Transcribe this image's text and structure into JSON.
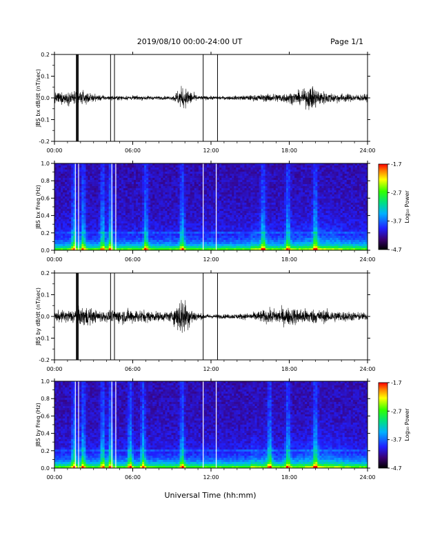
{
  "header": {
    "title": "2019/08/10  00:00-24:00 UT",
    "page": "Page 1/1"
  },
  "xlabel": "Universal Time (hh:mm)",
  "xticks": [
    "00:00",
    "06:00",
    "12:00",
    "18:00",
    "24:00"
  ],
  "colorbar": {
    "label": "Log₁₀ Power",
    "ticks": [
      "-1.7",
      "-2.7",
      "-3.7",
      "-4.7"
    ],
    "range": [
      -4.7,
      -1.7
    ]
  },
  "panels": [
    {
      "ylabel": "JBS bx dB/dt (nT/sec)",
      "yticks": [
        "0.2",
        "0.1",
        "0.0",
        "-0.1",
        "-0.2"
      ]
    },
    {
      "ylabel": "JBS bx Freq (Hz)",
      "yticks": [
        "1.0",
        "0.8",
        "0.6",
        "0.4",
        "0.2",
        "0.0"
      ]
    },
    {
      "ylabel": "JBS by dB/dt (nT/sec)",
      "yticks": [
        "0.2",
        "0.1",
        "0.0",
        "-0.1",
        "-0.2"
      ]
    },
    {
      "ylabel": "JBS by Freq (Hz)",
      "yticks": [
        "1.0",
        "0.8",
        "0.6",
        "0.4",
        "0.2",
        "0.0"
      ]
    }
  ],
  "chart_data": [
    {
      "type": "line",
      "ylabel": "JBS bx dB/dt (nT/sec)",
      "xlabel": "Universal Time (hh:mm)",
      "xlim": [
        0,
        24
      ],
      "ylim": [
        -0.2,
        0.2
      ],
      "x_units": "hours UT",
      "noise_envelope": {
        "x": [
          0,
          1,
          2,
          3,
          4,
          5,
          6,
          7,
          8,
          9,
          9.7,
          10.2,
          11,
          12,
          13,
          14,
          15,
          16,
          17,
          18,
          19,
          19.7,
          20.5,
          21,
          22,
          23,
          24
        ],
        "amplitude": [
          0.03,
          0.035,
          0.04,
          0.02,
          0.012,
          0.012,
          0.012,
          0.012,
          0.01,
          0.01,
          0.06,
          0.05,
          0.012,
          0.01,
          0.01,
          0.012,
          0.015,
          0.02,
          0.025,
          0.03,
          0.04,
          0.07,
          0.04,
          0.03,
          0.025,
          0.02,
          0.02
        ]
      },
      "spikes_hours": [
        1.7,
        1.8,
        4.3,
        4.6,
        11.4,
        12.5
      ]
    },
    {
      "type": "heatmap",
      "ylabel": "JBS bx Freq (Hz)",
      "xlim": [
        0,
        24
      ],
      "ylim": [
        0,
        1.0
      ],
      "colorbar_range": [
        -4.7,
        -1.7
      ],
      "enhanced_hours": [
        1.5,
        2.2,
        3.7,
        4.3,
        7.0,
        9.8,
        16.0,
        17.9,
        20.0
      ],
      "gap_hours": [
        1.6,
        1.85,
        4.4,
        4.7,
        11.4,
        12.4
      ]
    },
    {
      "type": "line",
      "ylabel": "JBS by dB/dt (nT/sec)",
      "xlabel": "Universal Time (hh:mm)",
      "xlim": [
        0,
        24
      ],
      "ylim": [
        -0.2,
        0.2
      ],
      "x_units": "hours UT",
      "noise_envelope": {
        "x": [
          0,
          1,
          2,
          2.5,
          3,
          4,
          5,
          6,
          7,
          8,
          9,
          9.8,
          10.2,
          11,
          12,
          13,
          14,
          15,
          16,
          17,
          18,
          19,
          20,
          21,
          22,
          23,
          24
        ],
        "amplitude": [
          0.03,
          0.035,
          0.05,
          0.06,
          0.035,
          0.03,
          0.04,
          0.04,
          0.035,
          0.025,
          0.03,
          0.12,
          0.07,
          0.02,
          0.012,
          0.012,
          0.015,
          0.02,
          0.035,
          0.045,
          0.05,
          0.045,
          0.04,
          0.035,
          0.03,
          0.025,
          0.02
        ]
      },
      "spikes_hours": [
        1.7,
        1.8,
        4.3,
        4.6,
        11.4,
        12.5
      ]
    },
    {
      "type": "heatmap",
      "ylabel": "JBS by Freq (Hz)",
      "xlim": [
        0,
        24
      ],
      "ylim": [
        0,
        1.0
      ],
      "colorbar_range": [
        -4.7,
        -1.7
      ],
      "enhanced_hours": [
        1.5,
        2.2,
        3.7,
        4.3,
        5.8,
        6.8,
        9.8,
        16.5,
        17.9,
        20.0
      ],
      "gap_hours": [
        1.6,
        1.85,
        4.4,
        4.7,
        11.4,
        12.4
      ]
    }
  ]
}
